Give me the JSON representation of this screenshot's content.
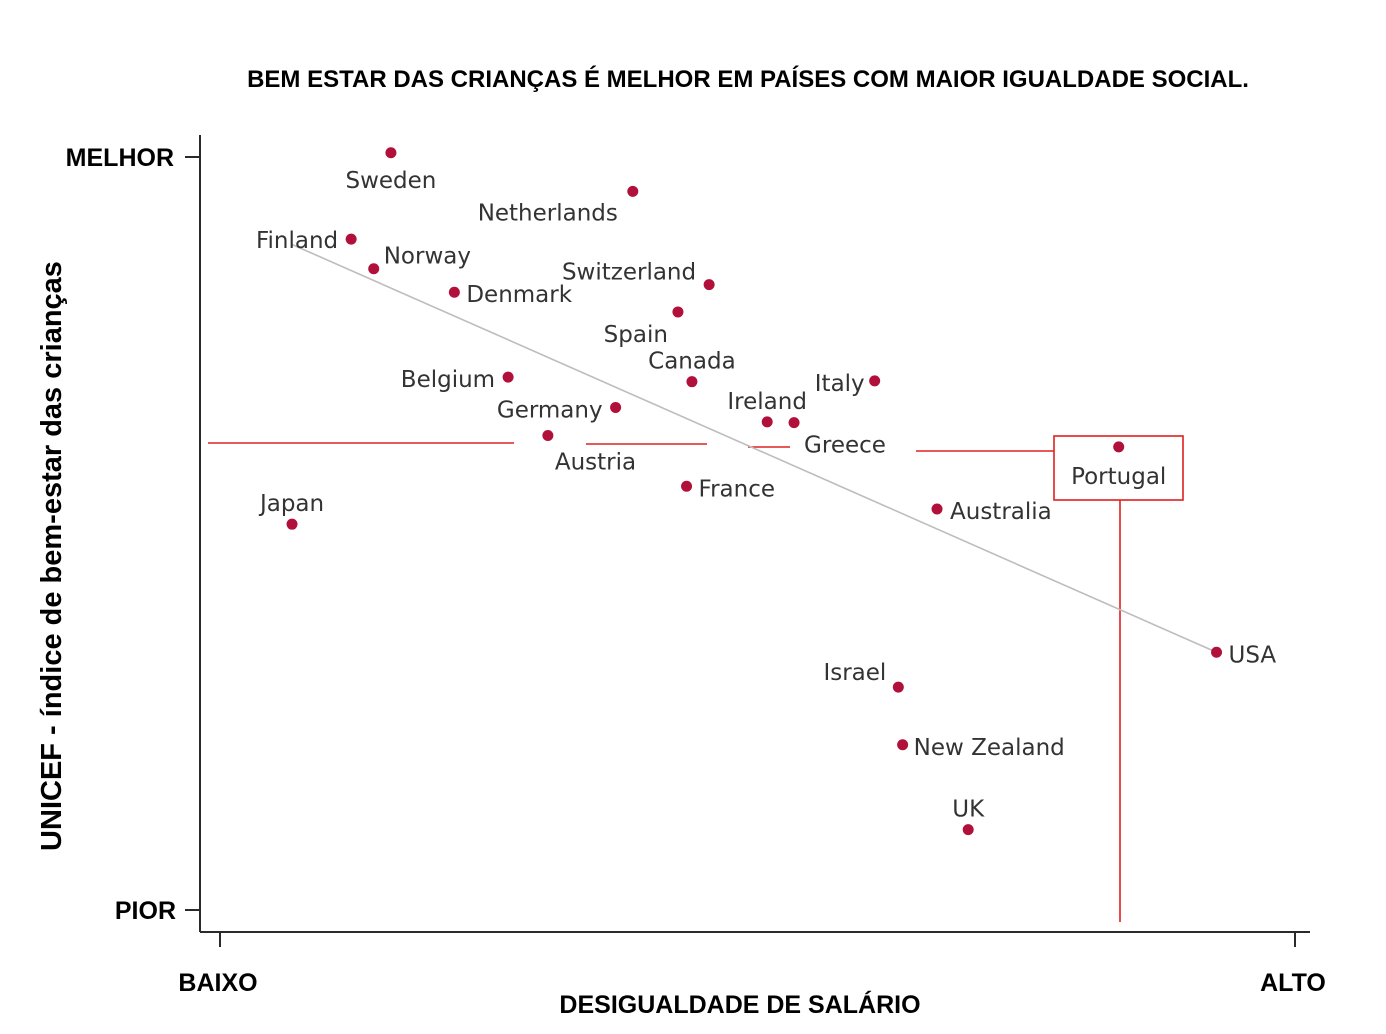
{
  "chart_data": {
    "type": "scatter",
    "title": "BEM ESTAR DAS CRIANÇAS É MELHOR EM PAÍSES COM MAIOR IGUALDADE SOCIAL.",
    "xlabel": "DESIGUALDADE DE SALÁRIO",
    "ylabel": "UNICEF - índice de bem-estar das crianças",
    "x_tick_labels": [
      "BAIXO",
      "ALTO"
    ],
    "y_tick_labels": [
      "PIOR",
      "MELHOR"
    ],
    "xlim": [
      0,
      100
    ],
    "ylim": [
      0,
      100
    ],
    "points": [
      {
        "name": "Sweden",
        "x": 15.9,
        "y": 99.9
      },
      {
        "name": "Netherlands",
        "x": 38.4,
        "y": 94.8
      },
      {
        "name": "Finland",
        "x": 12.2,
        "y": 88.5
      },
      {
        "name": "Norway",
        "x": 14.3,
        "y": 84.6
      },
      {
        "name": "Switzerland",
        "x": 45.5,
        "y": 82.5
      },
      {
        "name": "Denmark",
        "x": 21.8,
        "y": 81.5
      },
      {
        "name": "Spain",
        "x": 42.6,
        "y": 78.9
      },
      {
        "name": "Belgium",
        "x": 26.8,
        "y": 70.3
      },
      {
        "name": "Canada",
        "x": 43.9,
        "y": 69.7
      },
      {
        "name": "Italy",
        "x": 60.9,
        "y": 69.8
      },
      {
        "name": "Germany",
        "x": 36.8,
        "y": 66.3
      },
      {
        "name": "Ireland",
        "x": 50.9,
        "y": 64.4
      },
      {
        "name": "Greece",
        "x": 53.4,
        "y": 64.3
      },
      {
        "name": "Austria",
        "x": 30.5,
        "y": 62.6
      },
      {
        "name": "Portugal",
        "x": 83.6,
        "y": 61.1
      },
      {
        "name": "France",
        "x": 43.4,
        "y": 55.9
      },
      {
        "name": "Australia",
        "x": 66.7,
        "y": 52.9
      },
      {
        "name": "Japan",
        "x": 6.7,
        "y": 50.9
      },
      {
        "name": "USA",
        "x": 92.7,
        "y": 34.0
      },
      {
        "name": "Israel",
        "x": 63.1,
        "y": 29.4
      },
      {
        "name": "New Zealand",
        "x": 63.5,
        "y": 21.8
      },
      {
        "name": "UK",
        "x": 69.6,
        "y": 10.6
      }
    ],
    "trendline": {
      "x": [
        6.7,
        92.7
      ],
      "y": [
        87.8,
        34.0
      ]
    },
    "highlight": "Portugal",
    "colors": {
      "point": "#b0103a",
      "trend": "#bdbdbd",
      "annotation": "#e02020"
    }
  }
}
